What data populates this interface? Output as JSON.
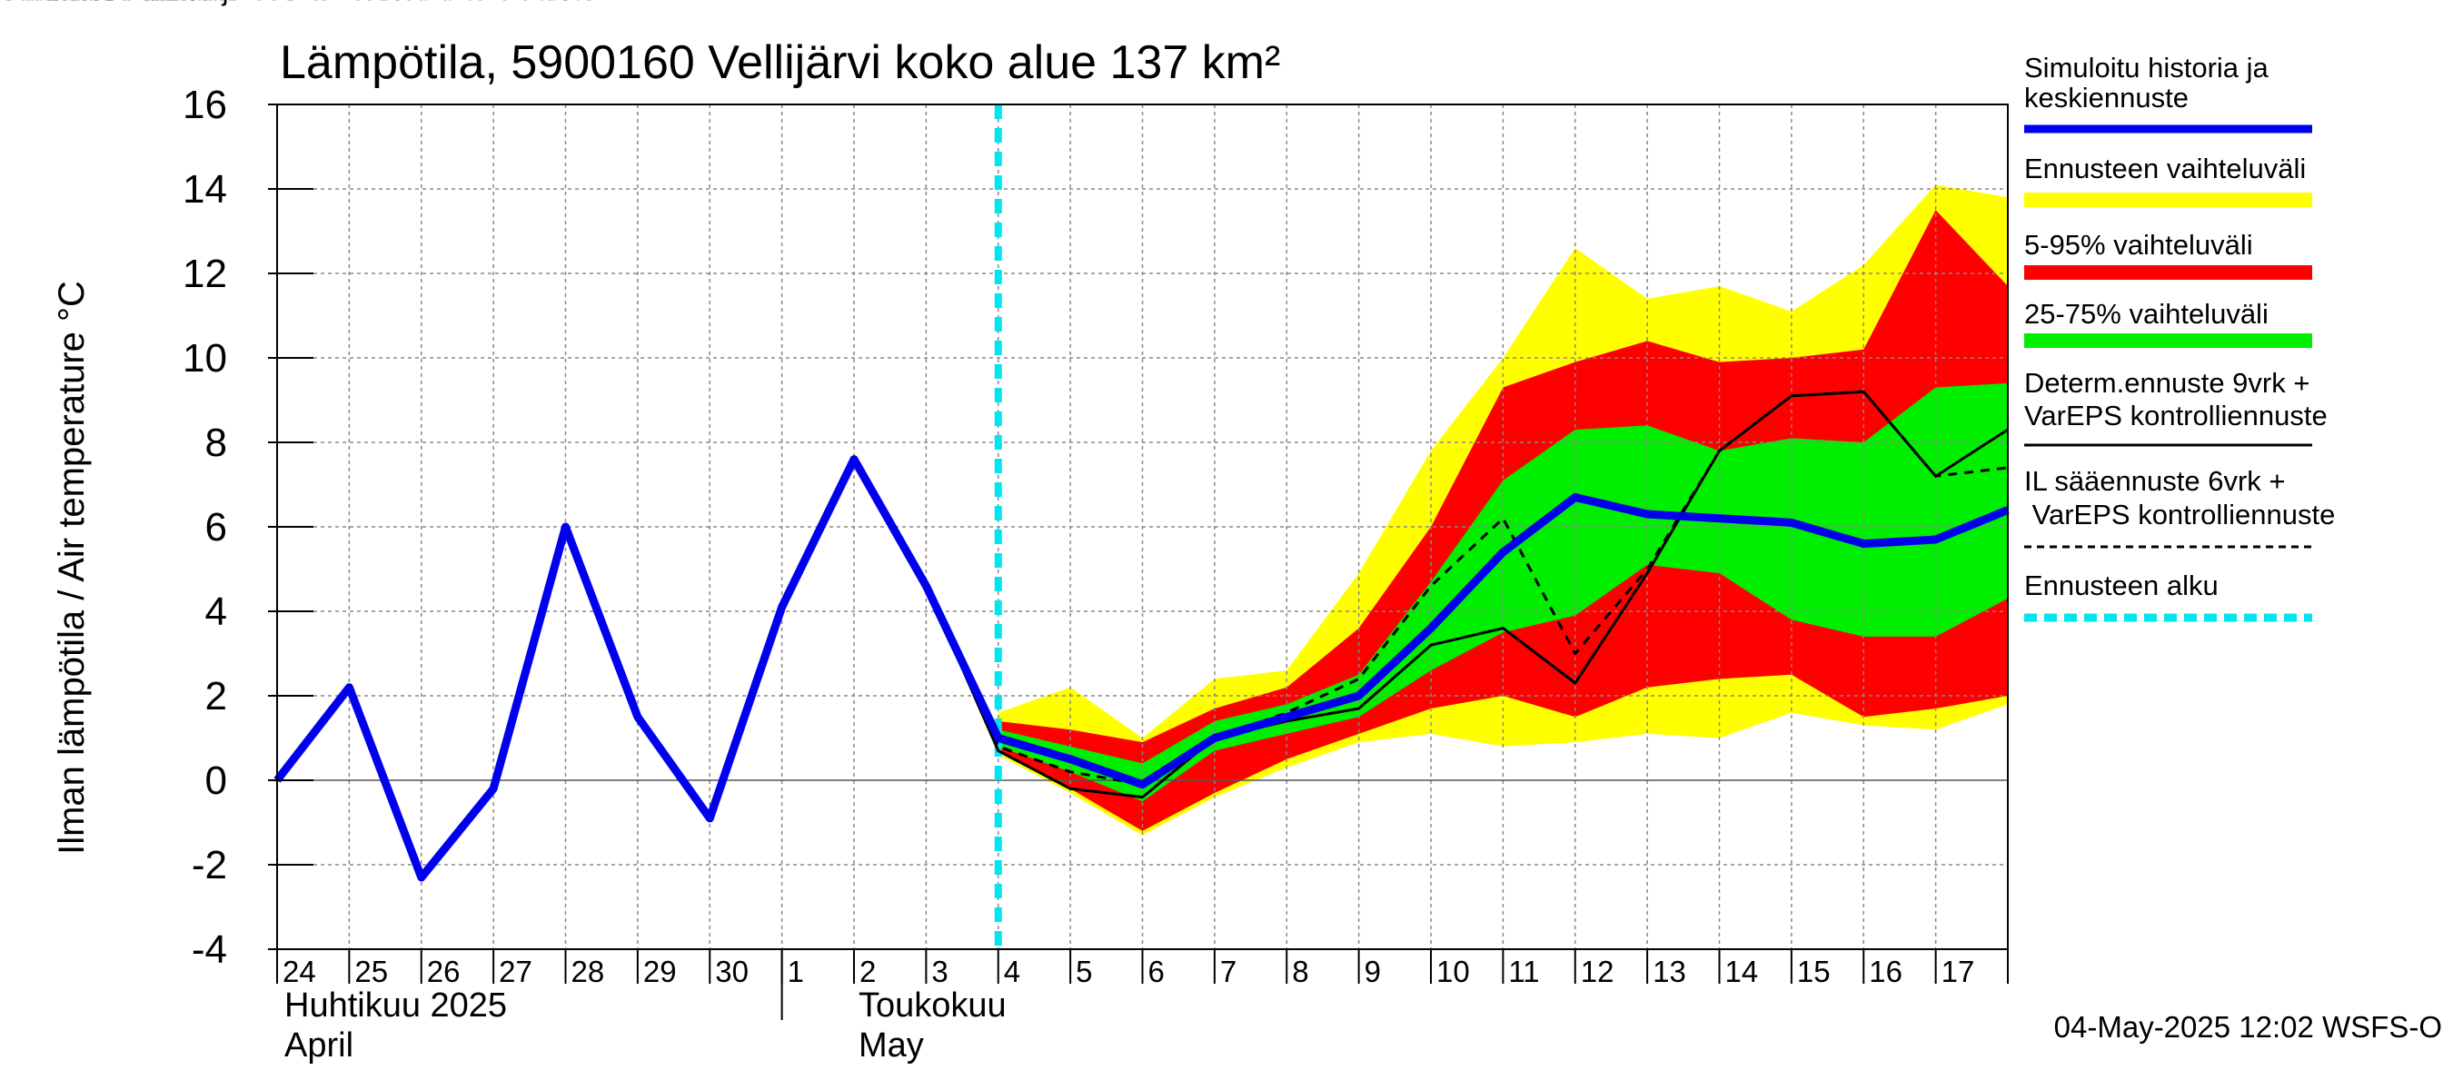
{
  "chart_data": {
    "type": "area",
    "title": "Lämpötila, 5900160 Vellijärvi koko alue 137 km²",
    "ylabel": "Ilman lämpötila / Air temperature   °C",
    "ylim": [
      -4,
      16
    ],
    "yticks": [
      "-4",
      "-2",
      "0",
      "2",
      "4",
      "6",
      "8",
      "10",
      "12",
      "14",
      "16"
    ],
    "x_start": "2025-04-24",
    "x_end": "2025-05-18",
    "x_ticks": [
      "24",
      "25",
      "26",
      "27",
      "28",
      "29",
      "30",
      "1",
      "2",
      "3",
      "4",
      "5",
      "6",
      "7",
      "8",
      "9",
      "10",
      "11",
      "12",
      "13",
      "14",
      "15",
      "16",
      "17"
    ],
    "month_labels": [
      {
        "fi": "Huhtikuu  2025",
        "en": "April"
      },
      {
        "fi": "Toukokuu",
        "en": "May"
      }
    ],
    "forecast_start": "2025-05-04",
    "timestamp": "04-May-2025 12:02 WSFS-O",
    "x": [
      "2025-05-04",
      "2025-05-05",
      "2025-05-06",
      "2025-05-07",
      "2025-05-08",
      "2025-05-09",
      "2025-05-10",
      "2025-05-11",
      "2025-05-12",
      "2025-05-13",
      "2025-05-14",
      "2025-05-15",
      "2025-05-16",
      "2025-05-17",
      "2025-05-18"
    ],
    "bands": [
      {
        "name": "Ennusteen vaihteluväli",
        "color": "#ffff00",
        "upper": [
          1.6,
          2.2,
          1.0,
          2.4,
          2.6,
          4.9,
          7.8,
          10.0,
          12.6,
          11.4,
          11.7,
          11.1,
          12.2,
          14.1,
          13.8
        ],
        "lower": [
          0.6,
          -0.3,
          -1.3,
          -0.4,
          0.3,
          0.9,
          1.1,
          0.8,
          0.9,
          1.1,
          1.0,
          1.6,
          1.3,
          1.2,
          1.8
        ]
      },
      {
        "name": "5-95% vaihteluväli",
        "color": "#ff0000",
        "upper": [
          1.4,
          1.2,
          0.9,
          1.7,
          2.2,
          3.6,
          6.0,
          9.3,
          9.9,
          10.4,
          9.9,
          10.0,
          10.2,
          13.5,
          11.7
        ],
        "lower": [
          0.7,
          -0.2,
          -1.2,
          -0.3,
          0.5,
          1.1,
          1.7,
          2.0,
          1.5,
          2.2,
          2.4,
          2.5,
          1.5,
          1.7,
          2.0
        ]
      },
      {
        "name": "25-75% vaihteluväli",
        "color": "#00ee00",
        "upper": [
          1.2,
          0.8,
          0.4,
          1.4,
          1.8,
          2.5,
          4.7,
          7.1,
          8.3,
          8.4,
          7.8,
          8.1,
          8.0,
          9.3,
          9.4
        ],
        "lower": [
          0.8,
          0.2,
          -0.5,
          0.7,
          1.1,
          1.5,
          2.6,
          3.5,
          3.9,
          5.1,
          4.9,
          3.8,
          3.4,
          3.4,
          4.3
        ]
      }
    ],
    "series": [
      {
        "name": "Simuloitu historia ja keskiennuste",
        "color": "#0000ee",
        "style": "thick",
        "x": [
          "2025-04-24",
          "2025-04-25",
          "2025-04-26",
          "2025-04-27",
          "2025-04-28",
          "2025-04-29",
          "2025-04-30",
          "2025-05-01",
          "2025-05-02",
          "2025-05-03",
          "2025-05-04",
          "2025-05-05",
          "2025-05-06",
          "2025-05-07",
          "2025-05-08",
          "2025-05-09",
          "2025-05-10",
          "2025-05-11",
          "2025-05-12",
          "2025-05-13",
          "2025-05-14",
          "2025-05-15",
          "2025-05-16",
          "2025-05-17",
          "2025-05-18"
        ],
        "values": [
          0.0,
          2.2,
          -2.3,
          -0.2,
          6.0,
          1.5,
          -0.9,
          4.1,
          7.6,
          4.6,
          1.0,
          0.5,
          -0.1,
          1.0,
          1.5,
          2.0,
          3.6,
          5.4,
          6.7,
          6.3,
          6.2,
          6.1,
          5.6,
          5.7,
          6.4
        ]
      },
      {
        "name": "Determ.ennuste 9vrk + VarEPS kontrolliennuste",
        "color": "#000000",
        "style": "solid",
        "x": [
          "2025-05-02",
          "2025-05-03",
          "2025-05-04",
          "2025-05-05",
          "2025-05-06",
          "2025-05-07",
          "2025-05-08",
          "2025-05-09",
          "2025-05-10",
          "2025-05-11",
          "2025-05-12",
          "2025-05-13",
          "2025-05-14",
          "2025-05-15",
          "2025-05-16",
          "2025-05-17",
          "2025-05-18"
        ],
        "values": [
          7.6,
          4.6,
          0.7,
          -0.2,
          -0.4,
          1.0,
          1.4,
          1.7,
          3.2,
          3.6,
          2.3,
          4.9,
          7.8,
          9.1,
          9.2,
          7.2,
          8.3
        ]
      },
      {
        "name": "IL sääennuste 6vrk + VarEPS kontrolliennuste",
        "color": "#000000",
        "style": "dashed",
        "x": [
          "2025-05-02",
          "2025-05-03",
          "2025-05-04",
          "2025-05-05",
          "2025-05-06",
          "2025-05-07",
          "2025-05-08",
          "2025-05-09",
          "2025-05-10",
          "2025-05-11",
          "2025-05-12",
          "2025-05-13",
          "2025-05-14",
          "2025-05-15",
          "2025-05-16",
          "2025-05-17",
          "2025-05-18"
        ],
        "values": [
          7.6,
          4.6,
          0.8,
          0.2,
          -0.1,
          1.0,
          1.6,
          2.4,
          4.6,
          6.2,
          3.0,
          5.0,
          7.8,
          9.1,
          9.2,
          7.2,
          7.4
        ]
      }
    ],
    "legend": [
      {
        "label": "Simuloitu historia ja keskiennuste",
        "color": "#0000ee",
        "kind": "thick"
      },
      {
        "label": "Ennusteen vaihteluväli",
        "color": "#ffff00",
        "kind": "band"
      },
      {
        "label": "5-95% vaihteluväli",
        "color": "#ff0000",
        "kind": "band"
      },
      {
        "label": "25-75% vaihteluväli",
        "color": "#00ee00",
        "kind": "band"
      },
      {
        "label": "Determ.ennuste 9vrk + VarEPS kontrolliennuste",
        "color": "#000000",
        "kind": "solid"
      },
      {
        "label": "IL sääennuste 6vrk  +   VarEPS kontrolliennuste",
        "color": "#000000",
        "kind": "dashed"
      },
      {
        "label": "Ennusteen alku",
        "color": "#00e5ee",
        "kind": "forecast"
      }
    ],
    "legend_placement": "right",
    "grid": true
  }
}
